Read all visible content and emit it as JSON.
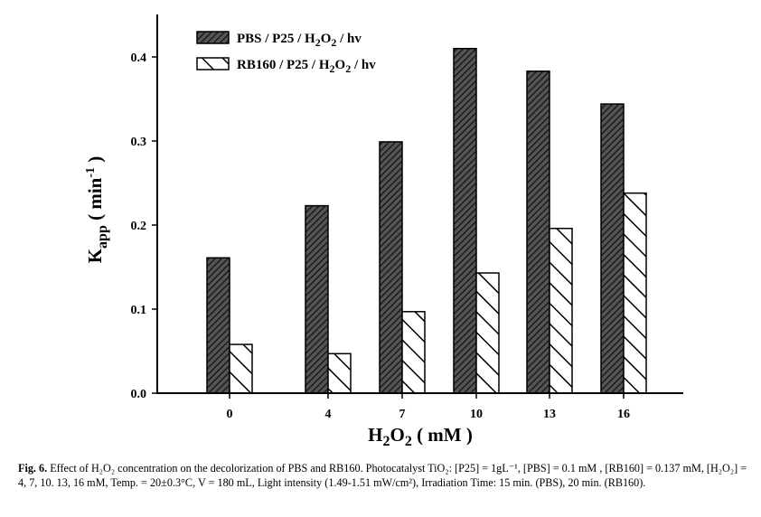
{
  "chart_data": {
    "type": "bar",
    "title": "",
    "xlabel": "H2O2 ( mM )",
    "xlabel_parts": {
      "main": "H",
      "sub1": "2",
      "mid": "O",
      "sub2": "2",
      "unit": " ( mM )"
    },
    "ylabel": "Kapp ( min-1 )",
    "ylabel_parts": {
      "main": "K",
      "sub": "app",
      "unit_open": " ( min",
      "sup": "-1",
      "unit_close": " )"
    },
    "categories": [
      "0",
      "4",
      "7",
      "10",
      "13",
      "16"
    ],
    "ylim": [
      0,
      0.45
    ],
    "yticks": [
      "0.0",
      "0.1",
      "0.2",
      "0.3",
      "0.4"
    ],
    "ytick_values": [
      0,
      0.1,
      0.2,
      0.3,
      0.4
    ],
    "grid": false,
    "legend_position": "top-left",
    "series": [
      {
        "name": "PBS / P25 / H2O2 / hv",
        "label_parts": [
          "PBS / P25 / H",
          "2",
          "O",
          "2",
          " / hv"
        ],
        "pattern": "dense-hatch-dark",
        "values": [
          0.161,
          0.223,
          0.299,
          0.41,
          0.383,
          0.344
        ]
      },
      {
        "name": "RB160 / P25 / H2O2 / hv",
        "label_parts": [
          "RB160 / P25 / H",
          "2",
          "O",
          "2",
          " / hv"
        ],
        "pattern": "sparse-backslash-white",
        "values": [
          0.058,
          0.047,
          0.097,
          0.143,
          0.196,
          0.238
        ]
      }
    ]
  },
  "caption": {
    "fig_label": "Fig. 6.",
    "text": " Effect of H₂O₂ concentration on the decolorization of PBS and RB160.  Photocatalyst TiO₂: [P25] = 1gL⁻¹, [PBS] = 0.1 mM , [RB160] = 0.137 mM, [H₂O₂] = 4, 7, 10. 13, 16 mM, Temp. = 20±0.3°C, V = 180 mL, Light intensity (1.49-1.51 mW/cm²), Irradiation Time: 15 min. (PBS), 20 min. (RB160)."
  }
}
